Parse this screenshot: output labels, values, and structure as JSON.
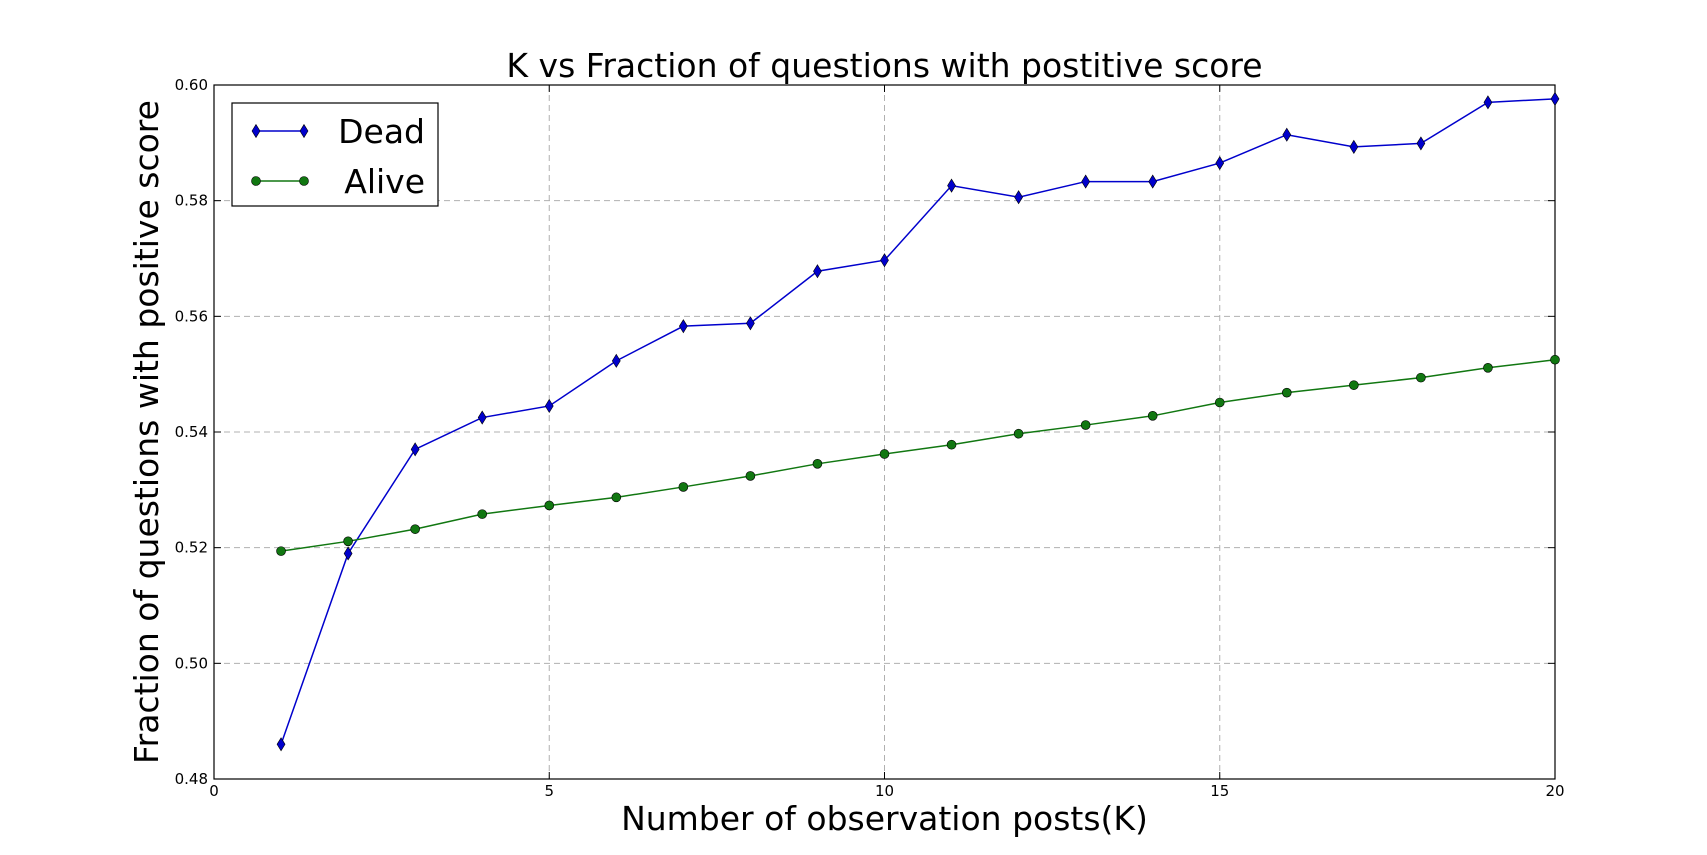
{
  "chart_data": {
    "type": "line",
    "title": "K vs Fraction of questions with postitive score",
    "xlabel": "Number of observation posts(K)",
    "ylabel": "Fraction of questions with positive score",
    "xlim": [
      0,
      20
    ],
    "ylim": [
      0.48,
      0.6
    ],
    "xticks": [
      0,
      5,
      10,
      15,
      20
    ],
    "xtick_labels": [
      "0",
      "5",
      "10",
      "15",
      "20"
    ],
    "yticks": [
      0.48,
      0.5,
      0.52,
      0.54,
      0.56,
      0.58,
      0.6
    ],
    "ytick_labels": [
      "0.48",
      "0.50",
      "0.52",
      "0.54",
      "0.56",
      "0.58",
      "0.60"
    ],
    "grid": true,
    "legend_position": "top-left",
    "x": [
      1,
      2,
      3,
      4,
      5,
      6,
      7,
      8,
      9,
      10,
      11,
      12,
      13,
      14,
      15,
      16,
      17,
      18,
      19,
      20
    ],
    "series": [
      {
        "name": "Dead",
        "color": "#0000cc",
        "marker": "diamond",
        "values": [
          0.486,
          0.519,
          0.537,
          0.5425,
          0.5445,
          0.5523,
          0.5583,
          0.5588,
          0.5678,
          0.5697,
          0.5826,
          0.5806,
          0.5833,
          0.5833,
          0.5865,
          0.5914,
          0.5893,
          0.5899,
          0.597,
          0.5976
        ]
      },
      {
        "name": "Alive",
        "color": "#117711",
        "marker": "circle",
        "values": [
          0.5194,
          0.5211,
          0.5232,
          0.5258,
          0.5273,
          0.5287,
          0.5305,
          0.5324,
          0.5345,
          0.5362,
          0.5378,
          0.5397,
          0.5412,
          0.5428,
          0.5451,
          0.5468,
          0.5481,
          0.5494,
          0.5511,
          0.5525
        ]
      }
    ]
  }
}
